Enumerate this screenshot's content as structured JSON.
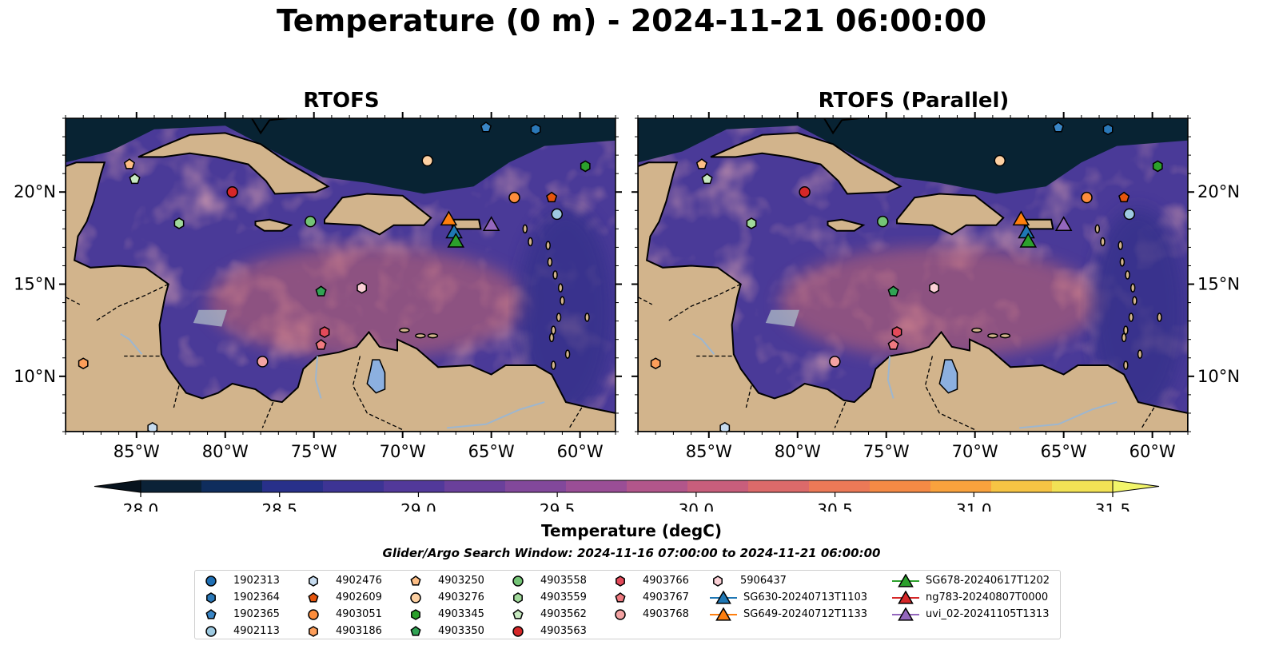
{
  "title": "Temperature (0 m) - 2024-11-21 06:00:00",
  "panels": [
    {
      "title": "RTOFS"
    },
    {
      "title": "RTOFS (Parallel)"
    }
  ],
  "map": {
    "lon_range": [
      -89,
      -58
    ],
    "lat_range": [
      7,
      24
    ],
    "lon_ticks": [
      {
        "value": -85,
        "label": "85°W"
      },
      {
        "value": -80,
        "label": "80°W"
      },
      {
        "value": -75,
        "label": "75°W"
      },
      {
        "value": -70,
        "label": "70°W"
      },
      {
        "value": -65,
        "label": "65°W"
      },
      {
        "value": -60,
        "label": "60°W"
      }
    ],
    "lat_ticks": [
      {
        "value": 20,
        "label": "20°N"
      },
      {
        "value": 15,
        "label": "15°N"
      },
      {
        "value": 10,
        "label": "10°N"
      }
    ],
    "colors": {
      "ocean_base": "#4a3a98",
      "open_ocean": "#082333",
      "land": "#d2b48c",
      "lake": "#8cb0e0",
      "warm": "#c46670",
      "cool": "#2e2d86"
    }
  },
  "colorbar": {
    "label": "Temperature (degC)",
    "min": 28.0,
    "max": 31.5,
    "ticks": [
      "28.0",
      "28.5",
      "29.0",
      "29.5",
      "30.0",
      "30.5",
      "31.0",
      "31.5"
    ],
    "colors": [
      "#0b2237",
      "#0f2d5d",
      "#28308a",
      "#3d3494",
      "#52399a",
      "#6a409b",
      "#82489b",
      "#9a4e96",
      "#b2568b",
      "#c85e7c",
      "#dc6a6a",
      "#ec7957",
      "#f58a45",
      "#f9a23d",
      "#f6c444",
      "#f2e255"
    ]
  },
  "search_window": "Glider/Argo Search Window: 2024-11-16 07:00:00 to 2024-11-21 06:00:00",
  "floats": [
    {
      "id": "1902313",
      "marker": "circle",
      "color": "#1f6fb4",
      "lon": null,
      "lat": null
    },
    {
      "id": "1902364",
      "marker": "hexagon",
      "color": "#2a78b8",
      "lon": -62.5,
      "lat": 23.4
    },
    {
      "id": "1902365",
      "marker": "pentagon",
      "color": "#3a86c6",
      "lon": -65.3,
      "lat": 23.5
    },
    {
      "id": "4902113",
      "marker": "circle",
      "color": "#9ecae1",
      "lon": -61.3,
      "lat": 18.8
    },
    {
      "id": "4902476",
      "marker": "hexagon",
      "color": "#c6dbef",
      "lon": -84.1,
      "lat": 7.2
    },
    {
      "id": "4902609",
      "marker": "pentagon",
      "color": "#e6550d",
      "lon": -61.6,
      "lat": 19.7
    },
    {
      "id": "4903051",
      "marker": "circle",
      "color": "#fd8d3c",
      "lon": -63.7,
      "lat": 19.7
    },
    {
      "id": "4903186",
      "marker": "hexagon",
      "color": "#fd9e5a",
      "lon": -88.0,
      "lat": 10.7
    },
    {
      "id": "4903250",
      "marker": "pentagon",
      "color": "#fdbe85",
      "lon": -85.4,
      "lat": 21.5
    },
    {
      "id": "4903276",
      "marker": "circle",
      "color": "#fdd0a2",
      "lon": -68.6,
      "lat": 21.7
    },
    {
      "id": "4903345",
      "marker": "hexagon",
      "color": "#2ca02c",
      "lon": -59.7,
      "lat": 21.4
    },
    {
      "id": "4903350",
      "marker": "pentagon",
      "color": "#31a354",
      "lon": -74.6,
      "lat": 14.6
    },
    {
      "id": "4903558",
      "marker": "circle",
      "color": "#74c476",
      "lon": -75.2,
      "lat": 18.4
    },
    {
      "id": "4903559",
      "marker": "hexagon",
      "color": "#a1d99b",
      "lon": -82.6,
      "lat": 18.3
    },
    {
      "id": "4903562",
      "marker": "pentagon",
      "color": "#c7e9c0",
      "lon": -85.1,
      "lat": 20.7
    },
    {
      "id": "4903563",
      "marker": "circle",
      "color": "#d62728",
      "lon": -79.6,
      "lat": 20.0
    },
    {
      "id": "4903766",
      "marker": "hexagon",
      "color": "#e34a5a",
      "lon": -74.4,
      "lat": 12.4
    },
    {
      "id": "4903767",
      "marker": "pentagon",
      "color": "#f07a80",
      "lon": -74.6,
      "lat": 11.7
    },
    {
      "id": "4903768",
      "marker": "circle",
      "color": "#f4a3a3",
      "lon": -77.9,
      "lat": 10.8
    },
    {
      "id": "5906437",
      "marker": "hexagon",
      "color": "#fbd0d6",
      "lon": -72.3,
      "lat": 14.8
    }
  ],
  "gliders": [
    {
      "id": "SG630-20240713T1103",
      "color": "#1f77b4",
      "lon": -67.1,
      "lat": 17.8
    },
    {
      "id": "SG649-20240712T1133",
      "color": "#ff7f0e",
      "lon": -67.4,
      "lat": 18.5
    },
    {
      "id": "SG678-20240617T1202",
      "color": "#2ca02c",
      "lon": -67.0,
      "lat": 17.3
    },
    {
      "id": "ng783-20240807T0000",
      "color": "#d62728",
      "lon": null,
      "lat": null
    },
    {
      "id": "uvi_02-20241105T1313",
      "color": "#9467bd",
      "lon": -65.0,
      "lat": 18.2
    }
  ]
}
